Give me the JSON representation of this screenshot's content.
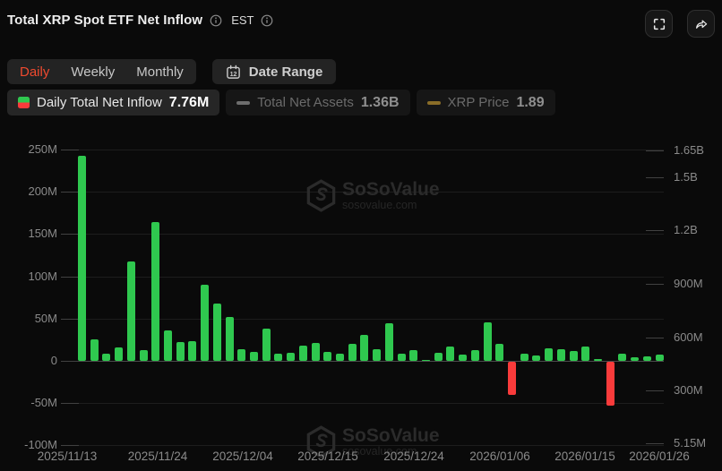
{
  "header": {
    "title": "Total XRP Spot ETF Net Inflow",
    "timezone": "EST"
  },
  "toolbar": {
    "tabs": [
      {
        "label": "Daily",
        "active": true
      },
      {
        "label": "Weekly",
        "active": false
      },
      {
        "label": "Monthly",
        "active": false
      }
    ],
    "date_range_label": "Date Range",
    "calendar_day": "12"
  },
  "legend": [
    {
      "label": "Daily Total Net Inflow",
      "value": "7.76M",
      "active": true,
      "icon": "candle",
      "color_top": "#2fc84f",
      "color_bottom": "#f93b3b"
    },
    {
      "label": "Total Net Assets",
      "value": "1.36B",
      "active": false,
      "icon": "dash",
      "color": "#6e6e6e"
    },
    {
      "label": "XRP Price",
      "value": "1.89",
      "active": false,
      "icon": "dash",
      "color": "#8a6d28"
    }
  ],
  "watermark": {
    "brand": "SoSoValue",
    "domain": "sosovalue.com"
  },
  "chart_data": {
    "type": "bar",
    "title": "Total XRP Spot ETF Net Inflow",
    "timezone": "EST",
    "grid": true,
    "x_labels": [
      "2025/11/13",
      "2025/11/24",
      "2025/12/04",
      "2025/12/15",
      "2025/12/24",
      "2026/01/06",
      "2026/01/15",
      "2026/01/26"
    ],
    "left_axis": {
      "unit": "M USD",
      "ticks": [
        "250M",
        "200M",
        "150M",
        "100M",
        "50M",
        "0",
        "-50M",
        "-100M"
      ],
      "values": [
        250,
        200,
        150,
        100,
        50,
        0,
        -50,
        -100
      ],
      "range": [
        -100,
        250
      ]
    },
    "right_axis": {
      "unit": "USD",
      "ticks": [
        "1.65B",
        "1.5B",
        "1.2B",
        "900M",
        "600M",
        "300M",
        "5.15M"
      ],
      "values_m": [
        1650,
        1500,
        1200,
        900,
        600,
        300,
        5.15
      ],
      "range_m": [
        5.15,
        1650
      ]
    },
    "series": [
      {
        "name": "Daily Total Net Inflow",
        "unit": "M USD",
        "values": [
          243,
          25,
          9,
          16,
          118,
          13,
          164,
          36,
          22,
          23,
          90,
          68,
          52,
          14,
          11,
          38,
          8,
          10,
          18,
          21,
          11,
          9,
          20,
          31,
          14,
          45,
          9,
          13,
          0.6,
          10,
          17,
          7,
          13,
          46,
          20,
          -39,
          9,
          6,
          15,
          14,
          12,
          17,
          2,
          -52,
          8,
          4,
          5,
          7.76
        ]
      }
    ],
    "latest_value": "7.76M",
    "colors": {
      "positive": "#2fc84f",
      "negative": "#f93b3b"
    }
  }
}
